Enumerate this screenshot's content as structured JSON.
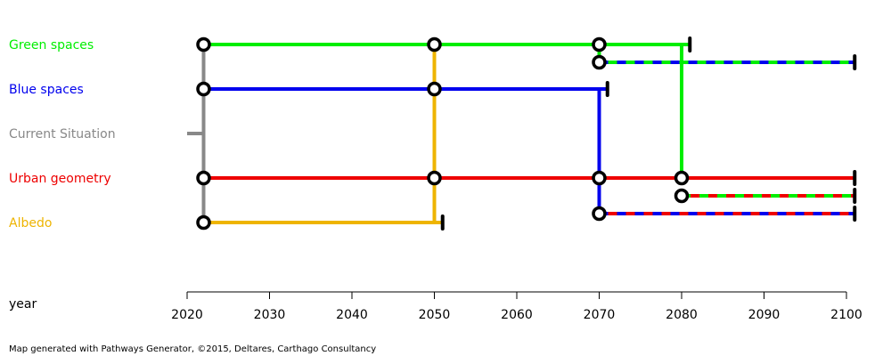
{
  "chart_data": {
    "type": "adaptation-pathways-map",
    "x_axis": {
      "label": "year",
      "min": 2020,
      "max": 2100,
      "ticks": [
        2020,
        2030,
        2040,
        2050,
        2060,
        2070,
        2080,
        2090,
        2100
      ]
    },
    "actions": [
      {
        "name": "Green spaces",
        "color": "#00ee00"
      },
      {
        "name": "Blue spaces",
        "color": "#0000ee"
      },
      {
        "name": "Current Situation",
        "color": "#888888"
      },
      {
        "name": "Urban geometry",
        "color": "#ee0000"
      },
      {
        "name": "Albedo",
        "color": "#eeb400"
      }
    ],
    "pathways": [
      {
        "action": "Green spaces",
        "start": 2022,
        "end": 2081
      },
      {
        "action": "Blue spaces",
        "start": 2022,
        "end": 2071
      },
      {
        "action": "Current Situation",
        "start": 2020,
        "end": 2022
      },
      {
        "action": "Urban geometry",
        "start": 2022,
        "end": 2101
      },
      {
        "action": "Albedo",
        "start": 2022,
        "end": 2051
      },
      {
        "action": "Green spaces + Blue spaces",
        "start": 2070,
        "end": 2101
      },
      {
        "action": "Urban geometry + Green spaces",
        "start": 2080,
        "end": 2101
      },
      {
        "action": "Urban geometry + Blue spaces",
        "start": 2070,
        "end": 2101
      }
    ],
    "transfer_years": [
      2022,
      2050,
      2070,
      2080
    ]
  },
  "footer": "Map generated with Pathways Generator, ©2015, Deltares, Carthago Consultancy"
}
